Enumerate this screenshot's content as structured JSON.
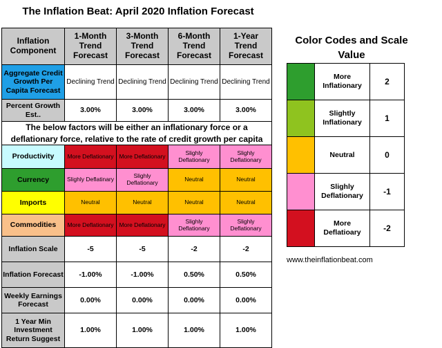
{
  "title": "The Inflation Beat: April 2020 Inflation Forecast",
  "table": {
    "headers": [
      "Inflation Component",
      "1-Month Trend Forecast",
      "3-Month Trend Forecast",
      "6-Month Trend Forecast",
      "1-Year Trend Forecast"
    ],
    "rows": [
      {
        "label": "Aggregate Credit Growth Per Capita Forecast",
        "values": [
          "Declining Trend",
          "Declining Trend",
          "Declining Trend",
          "Declining Trend"
        ]
      },
      {
        "label": "Percent Growth Est..",
        "values": [
          "3.00%",
          "3.00%",
          "3.00%",
          "3.00%"
        ]
      }
    ],
    "banner": "The below factors will be either an inflationary force or a deflationary force, relative to the rate of credit growth per capita",
    "factors": [
      {
        "label": "Productivity",
        "values": [
          "More Deflationary",
          "More Deflationary",
          "Slighly Deflationary",
          "Slighly Deflationary"
        ]
      },
      {
        "label": "Currency",
        "values": [
          "Slighly Deflatinary",
          "Slighly Deflationary",
          "Neutral",
          "Neutral"
        ]
      },
      {
        "label": "Imports",
        "values": [
          "Neutral",
          "Neutral",
          "Neutral",
          "Neutral"
        ]
      },
      {
        "label": "Commodities",
        "values": [
          "More Deflationary",
          "More Deflationary",
          "Slighly Deflationary",
          "Slighly Deflationary"
        ]
      }
    ],
    "summary": [
      {
        "label": "Inflation Scale",
        "values": [
          "-5",
          "-5",
          "-2",
          "-2"
        ]
      },
      {
        "label": "Inflation Forecast",
        "values": [
          "-1.00%",
          "-1.00%",
          "0.50%",
          "0.50%"
        ]
      },
      {
        "label": "Weekly Earnings Forecast",
        "values": [
          "0.00%",
          "0.00%",
          "0.00%",
          "0.00%"
        ]
      },
      {
        "label": "1 Year Min Investment Return Suggest",
        "values": [
          "1.00%",
          "1.00%",
          "1.00%",
          "1.00%"
        ]
      }
    ]
  },
  "legend": {
    "title": "Color Codes and Scale Value",
    "items": [
      {
        "label": "More Inflationary",
        "value": "2",
        "color": "#2e9e2e"
      },
      {
        "label": "Slightly Inflationary",
        "value": "1",
        "color": "#8fc31f"
      },
      {
        "label": "Neutral",
        "value": "0",
        "color": "#ffc000"
      },
      {
        "label": "Slighly Deflationary",
        "value": "-1",
        "color": "#ff8fd0"
      },
      {
        "label": "More Deflatioary",
        "value": "-2",
        "color": "#d3101f"
      }
    ]
  },
  "website": "www.theinflationbeat.com"
}
